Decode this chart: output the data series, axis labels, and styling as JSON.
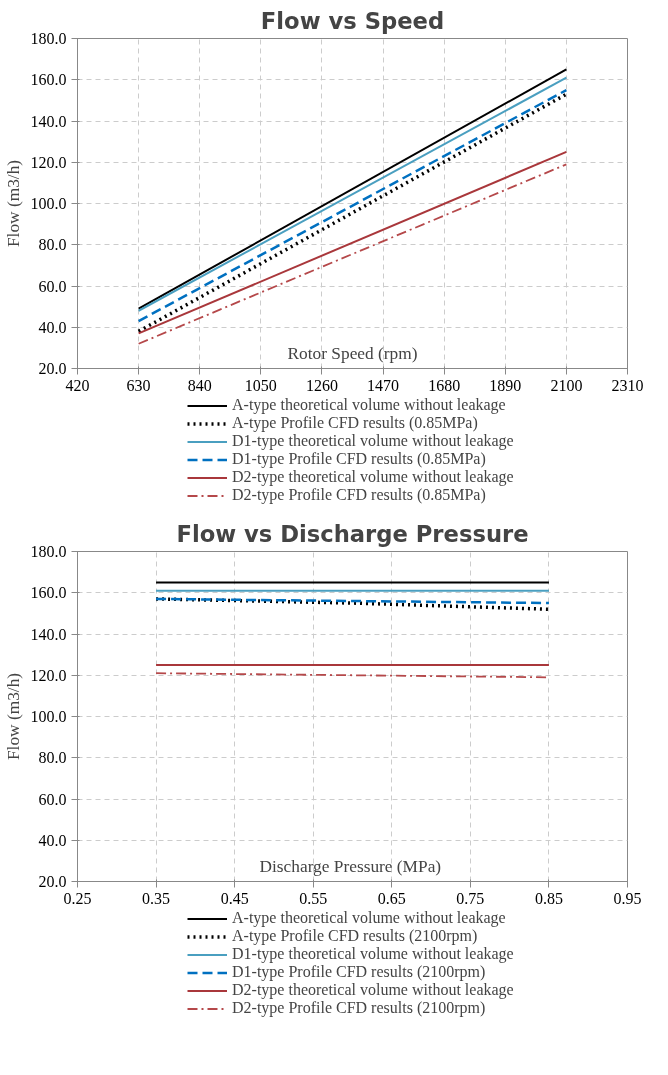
{
  "chart_data": [
    {
      "type": "line",
      "title": "Flow vs Speed",
      "xlabel": "Rotor Speed (rpm)",
      "ylabel": "Flow (m3/h)",
      "xlim": [
        420,
        2310
      ],
      "xticks": [
        420,
        630,
        840,
        1050,
        1260,
        1470,
        1680,
        1890,
        2100,
        2310
      ],
      "ylim": [
        20,
        180
      ],
      "yticks": [
        {
          "value": 20,
          "label": "20.0"
        },
        {
          "value": 40,
          "label": "40.0"
        },
        {
          "value": 60,
          "label": "60.0"
        },
        {
          "value": 80,
          "label": "80.0"
        },
        {
          "value": 100,
          "label": "100.0"
        },
        {
          "value": 120,
          "label": "120.0"
        },
        {
          "value": 140,
          "label": "140.0"
        },
        {
          "value": 160,
          "label": "160.0"
        },
        {
          "value": 180,
          "label": "180.0"
        }
      ],
      "grid": true,
      "legend": "bottom",
      "x": [
        630,
        2100
      ],
      "series": [
        {
          "name": "A-type theoretical volume without leakage",
          "color": "#000000",
          "line_style": "solid",
          "values": [
            49,
            165
          ]
        },
        {
          "name": "A-type Profile CFD results (0.85MPa)",
          "color": "#000000",
          "line_style": "dotted",
          "values": [
            38,
            153
          ]
        },
        {
          "name": "D1-type theoretical volume without leakage",
          "color": "#4a9fc0",
          "line_style": "solid",
          "values": [
            48,
            161
          ]
        },
        {
          "name": "D1-type Profile CFD results (0.85MPa)",
          "color": "#0070c0",
          "line_style": "dashed",
          "values": [
            43,
            155
          ]
        },
        {
          "name": "D2-type theoretical volume without leakage",
          "color": "#a9373b",
          "line_style": "solid",
          "values": [
            37,
            125
          ]
        },
        {
          "name": "D2-type Profile CFD results (0.85MPa)",
          "color": "#b5484a",
          "line_style": "dashdot",
          "values": [
            32,
            119
          ]
        }
      ]
    },
    {
      "type": "line",
      "title": "Flow vs Discharge Pressure",
      "xlabel": "Discharge  Pressure (MPa)",
      "ylabel": "Flow (m3/h)",
      "xlim": [
        0.25,
        0.95
      ],
      "xticks": [
        0.25,
        0.35,
        0.45,
        0.55,
        0.65,
        0.75,
        0.85,
        0.95
      ],
      "ylim": [
        20,
        180
      ],
      "yticks": [
        {
          "value": 20,
          "label": "20.0"
        },
        {
          "value": 40,
          "label": "40.0"
        },
        {
          "value": 60,
          "label": "60.0"
        },
        {
          "value": 80,
          "label": "80.0"
        },
        {
          "value": 100,
          "label": "100.0"
        },
        {
          "value": 120,
          "label": "120.0"
        },
        {
          "value": 140,
          "label": "140.0"
        },
        {
          "value": 160,
          "label": "160.0"
        },
        {
          "value": 180,
          "label": "180.0"
        }
      ],
      "grid": true,
      "legend": "bottom",
      "x": [
        0.35,
        0.6,
        0.85
      ],
      "series": [
        {
          "name": "A-type theoretical volume without leakage",
          "color": "#000000",
          "line_style": "solid",
          "values": [
            165,
            165,
            165
          ]
        },
        {
          "name": "A-type Profile CFD results (2100rpm)",
          "color": "#000000",
          "line_style": "dotted",
          "values": [
            157,
            155,
            152
          ]
        },
        {
          "name": "D1-type theoretical volume without leakage",
          "color": "#4a9fc0",
          "line_style": "solid",
          "values": [
            161,
            161,
            161
          ]
        },
        {
          "name": "D1-type Profile CFD results (2100rpm)",
          "color": "#0070c0",
          "line_style": "dashed",
          "values": [
            157,
            156,
            155
          ]
        },
        {
          "name": "D2-type theoretical volume without leakage",
          "color": "#a9373b",
          "line_style": "solid",
          "values": [
            125,
            125,
            125
          ]
        },
        {
          "name": "D2-type Profile CFD results (2100rpm)",
          "color": "#b5484a",
          "line_style": "dashdot",
          "values": [
            121,
            120,
            119
          ]
        }
      ]
    }
  ]
}
